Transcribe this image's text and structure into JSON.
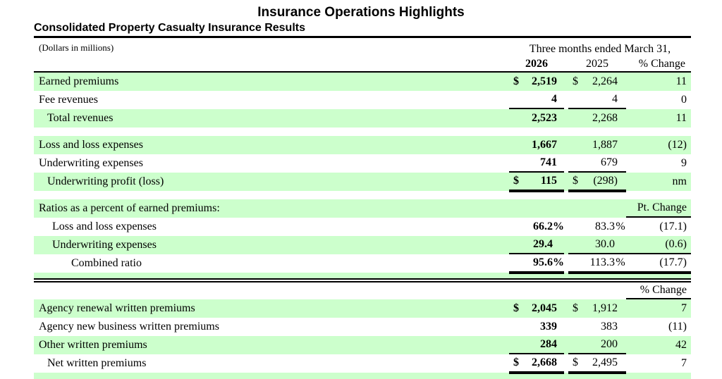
{
  "page_title": "Insurance Operations Highlights",
  "section_title": "Consolidated Property Casualty Insurance Results",
  "table": {
    "units_note": "(Dollars in millions)",
    "period_header": "Three months ended March 31,",
    "columns": {
      "current": "2026",
      "prior": "2025",
      "change": "% Change"
    },
    "highlight_color": "#ccffcc",
    "rows": [
      {
        "type": "data",
        "label": "Earned premiums",
        "indent": 0,
        "green": true,
        "c1": {
          "prefix": "$",
          "value": "2,519"
        },
        "c2": {
          "prefix": "$",
          "value": "2,264"
        },
        "change": "11"
      },
      {
        "type": "data",
        "label": "Fee revenues",
        "indent": 0,
        "green": false,
        "c1": {
          "value": "4"
        },
        "c2": {
          "value": "4"
        },
        "change": "0",
        "underline": "single"
      },
      {
        "type": "data",
        "label": "Total revenues",
        "indent": 1,
        "green": true,
        "c1": {
          "value": "2,523"
        },
        "c2": {
          "value": "2,268"
        },
        "change": "11"
      },
      {
        "type": "gap",
        "height": 12
      },
      {
        "type": "data",
        "label": "Loss and loss expenses",
        "indent": 0,
        "green": true,
        "c1": {
          "value": "1,667"
        },
        "c2": {
          "value": "1,887"
        },
        "change": "(12)"
      },
      {
        "type": "data",
        "label": "Underwriting expenses",
        "indent": 0,
        "green": false,
        "c1": {
          "value": "741"
        },
        "c2": {
          "value": "679"
        },
        "change": "9",
        "underline": "single"
      },
      {
        "type": "data",
        "label": "Underwriting profit (loss)",
        "indent": 1,
        "green": true,
        "c1": {
          "prefix": "$",
          "value": "115"
        },
        "c2": {
          "prefix": "$",
          "value": "(298)"
        },
        "change": "nm",
        "underline": "double"
      },
      {
        "type": "gap",
        "height": 12
      },
      {
        "type": "data",
        "label": "Ratios as a percent of earned premiums:",
        "indent": 0,
        "green": true,
        "change_header": "Pt. Change",
        "change_underline": "single"
      },
      {
        "type": "data",
        "label": "Loss and loss expenses",
        "indent": 2,
        "green": false,
        "c1": {
          "value": "66.2",
          "suffix": "%"
        },
        "c2": {
          "value": "83.3",
          "suffix": "%"
        },
        "change": "(17.1)"
      },
      {
        "type": "data",
        "label": "Underwriting expenses",
        "indent": 2,
        "green": true,
        "c1": {
          "value": "29.4",
          "suffix": ""
        },
        "c2": {
          "value": "30.0",
          "suffix": ""
        },
        "change": "(0.6)",
        "underline": "single",
        "change_underline": "single"
      },
      {
        "type": "data",
        "label": "Combined ratio",
        "indent": 3,
        "green": false,
        "c1": {
          "value": "95.6",
          "suffix": "%"
        },
        "c2": {
          "value": "113.3",
          "suffix": "%"
        },
        "change": "(17.7)",
        "underline": "double",
        "change_underline": "double"
      },
      {
        "type": "strip",
        "height": 8
      },
      {
        "type": "heavy-rule"
      },
      {
        "type": "data",
        "label": "",
        "indent": 0,
        "green": false,
        "height": 24,
        "change_header": "% Change",
        "change_underline": "single"
      },
      {
        "type": "data",
        "label": "Agency renewal written premiums",
        "indent": 0,
        "green": true,
        "c1": {
          "prefix": "$",
          "value": "2,045"
        },
        "c2": {
          "prefix": "$",
          "value": "1,912"
        },
        "change": "7"
      },
      {
        "type": "data",
        "label": "Agency new business written premiums",
        "indent": 0,
        "green": false,
        "c1": {
          "value": "339"
        },
        "c2": {
          "value": "383"
        },
        "change": "(11)"
      },
      {
        "type": "data",
        "label": "Other written premiums",
        "indent": 0,
        "green": true,
        "c1": {
          "value": "284"
        },
        "c2": {
          "value": "200"
        },
        "change": "42",
        "underline": "single"
      },
      {
        "type": "data",
        "label": "Net written premiums",
        "indent": 1,
        "green": false,
        "c1": {
          "prefix": "$",
          "value": "2,668"
        },
        "c2": {
          "prefix": "$",
          "value": "2,495"
        },
        "change": "7",
        "underline": "double"
      },
      {
        "type": "strip",
        "height": 9
      }
    ]
  }
}
